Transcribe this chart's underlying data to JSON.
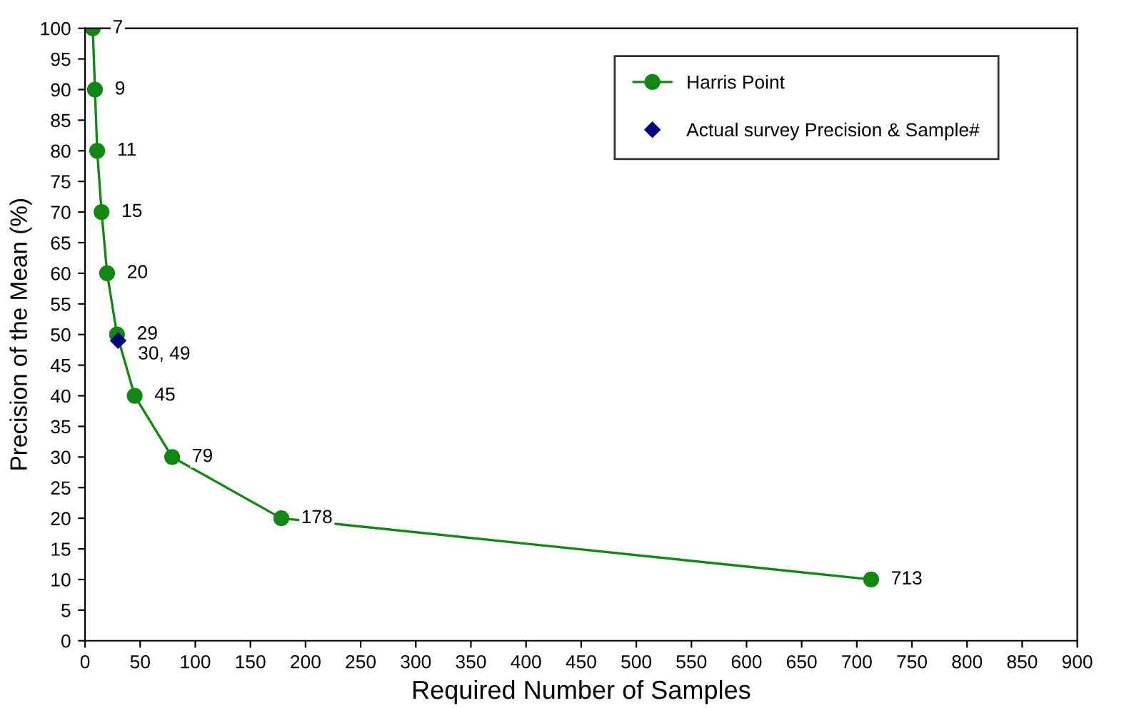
{
  "chart_data": {
    "type": "line",
    "xlabel": "Required Number of Samples",
    "ylabel": "Precision of the Mean (%)",
    "xlim": [
      0,
      900
    ],
    "xticks": [
      0,
      50,
      100,
      150,
      200,
      250,
      300,
      350,
      400,
      450,
      500,
      550,
      600,
      650,
      700,
      750,
      800,
      850,
      900
    ],
    "ylim": [
      0,
      100
    ],
    "yticks": [
      0,
      5,
      10,
      15,
      20,
      25,
      30,
      35,
      40,
      45,
      50,
      55,
      60,
      65,
      70,
      75,
      80,
      85,
      90,
      95,
      100
    ],
    "grid": false,
    "legend": "top right",
    "series": [
      {
        "name": "Harris Point",
        "color": "#118811",
        "marker": "circle",
        "line_style": "solid",
        "x": [
          7,
          9,
          11,
          15,
          20,
          29,
          45,
          79,
          178,
          713
        ],
        "values": [
          100,
          90,
          80,
          70,
          60,
          50,
          40,
          30,
          20,
          10
        ]
      },
      {
        "name": "Actual survey Precision & Sample#",
        "type": "scatter",
        "color": "#000080",
        "marker": "diamond",
        "x": [
          30
        ],
        "values": [
          49
        ]
      }
    ],
    "annotations": [
      {
        "text": "7",
        "x": 7,
        "y": 100
      },
      {
        "text": "9",
        "x": 9,
        "y": 90
      },
      {
        "text": "11",
        "x": 11,
        "y": 80
      },
      {
        "text": "15",
        "x": 15,
        "y": 70
      },
      {
        "text": "20",
        "x": 20,
        "y": 60
      },
      {
        "text": "29",
        "x": 29,
        "y": 50
      },
      {
        "text": "45",
        "x": 45,
        "y": 40
      },
      {
        "text": "79",
        "x": 79,
        "y": 30
      },
      {
        "text": "178",
        "x": 178,
        "y": 20
      },
      {
        "text": "713",
        "x": 713,
        "y": 10
      },
      {
        "text": "30, 49",
        "x": 30,
        "y": 49
      }
    ]
  }
}
